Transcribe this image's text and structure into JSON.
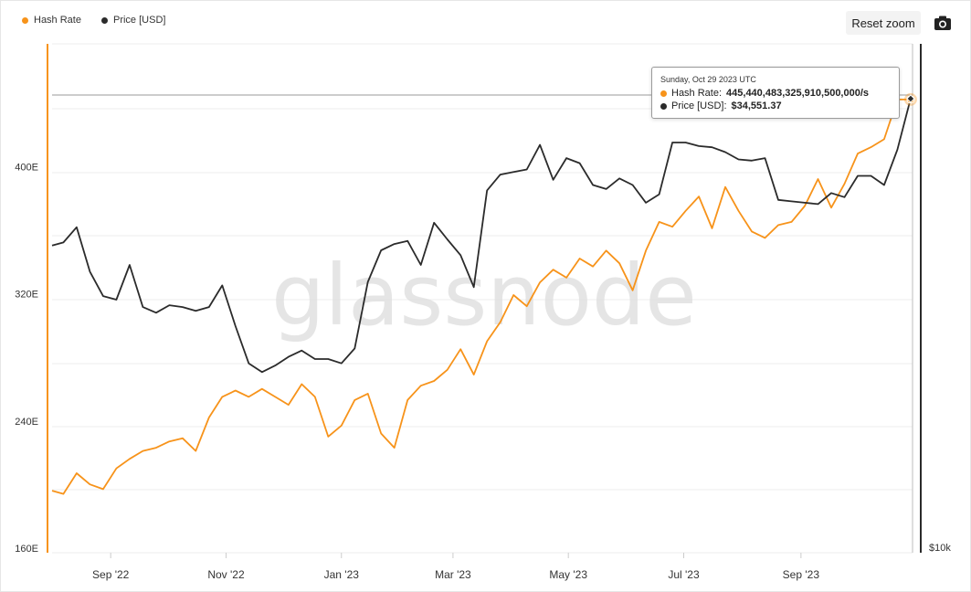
{
  "legend": {
    "hash_rate": "Hash Rate",
    "price": "Price [USD]"
  },
  "toolbar": {
    "reset_zoom": "Reset zoom",
    "camera_icon": "camera-icon"
  },
  "watermark": "glassnode",
  "colors": {
    "hash_rate": "#f7931a",
    "price": "#2b2b2b",
    "grid": "#eeeeee"
  },
  "tooltip": {
    "date": "Sunday, Oct 29 2023 UTC",
    "hash_label": "Hash Rate:",
    "hash_value": "445,440,483,325,910,500,000/s",
    "price_label": "Price [USD]:",
    "price_value": "$34,551.37"
  },
  "chart_data": {
    "type": "line",
    "x_tick_labels": [
      "Sep '22",
      "Nov '22",
      "Jan '23",
      "Mar '23",
      "May '23",
      "Jul '23",
      "Sep '23"
    ],
    "y_left_tick_labels": [
      "160E",
      "240E",
      "320E",
      "400E"
    ],
    "y_right_tick_labels": [
      "$10k"
    ],
    "y_left_ticks": [
      160,
      240,
      320,
      400
    ],
    "ylim_left": [
      160,
      480
    ],
    "x_range": [
      "2022-08-01",
      "2023-10-30"
    ],
    "grid": true,
    "legend_position": "top-left",
    "series": [
      {
        "name": "Hash Rate",
        "axis": "left",
        "unit": "E",
        "color": "#f7931a",
        "points": [
          [
            "2022-08-01",
            199
          ],
          [
            "2022-08-07",
            197
          ],
          [
            "2022-08-14",
            210
          ],
          [
            "2022-08-21",
            203
          ],
          [
            "2022-08-28",
            200
          ],
          [
            "2022-09-04",
            213
          ],
          [
            "2022-09-11",
            219
          ],
          [
            "2022-09-18",
            224
          ],
          [
            "2022-09-25",
            226
          ],
          [
            "2022-10-02",
            230
          ],
          [
            "2022-10-09",
            232
          ],
          [
            "2022-10-16",
            224
          ],
          [
            "2022-10-23",
            245
          ],
          [
            "2022-10-30",
            258
          ],
          [
            "2022-11-06",
            262
          ],
          [
            "2022-11-13",
            258
          ],
          [
            "2022-11-20",
            263
          ],
          [
            "2022-11-27",
            258
          ],
          [
            "2022-12-04",
            253
          ],
          [
            "2022-12-11",
            266
          ],
          [
            "2022-12-18",
            258
          ],
          [
            "2022-12-25",
            233
          ],
          [
            "2023-01-01",
            240
          ],
          [
            "2023-01-08",
            256
          ],
          [
            "2023-01-15",
            260
          ],
          [
            "2023-01-22",
            235
          ],
          [
            "2023-01-29",
            226
          ],
          [
            "2023-02-05",
            256
          ],
          [
            "2023-02-12",
            265
          ],
          [
            "2023-02-19",
            268
          ],
          [
            "2023-02-26",
            275
          ],
          [
            "2023-03-05",
            288
          ],
          [
            "2023-03-12",
            272
          ],
          [
            "2023-03-19",
            293
          ],
          [
            "2023-03-26",
            305
          ],
          [
            "2023-04-02",
            322
          ],
          [
            "2023-04-09",
            315
          ],
          [
            "2023-04-16",
            330
          ],
          [
            "2023-04-23",
            338
          ],
          [
            "2023-04-30",
            333
          ],
          [
            "2023-05-07",
            345
          ],
          [
            "2023-05-14",
            340
          ],
          [
            "2023-05-21",
            350
          ],
          [
            "2023-05-28",
            342
          ],
          [
            "2023-06-04",
            325
          ],
          [
            "2023-06-11",
            350
          ],
          [
            "2023-06-18",
            368
          ],
          [
            "2023-06-25",
            365
          ],
          [
            "2023-07-02",
            375
          ],
          [
            "2023-07-09",
            384
          ],
          [
            "2023-07-16",
            364
          ],
          [
            "2023-07-23",
            390
          ],
          [
            "2023-07-30",
            375
          ],
          [
            "2023-08-06",
            362
          ],
          [
            "2023-08-13",
            358
          ],
          [
            "2023-08-20",
            366
          ],
          [
            "2023-08-27",
            368
          ],
          [
            "2023-09-03",
            378
          ],
          [
            "2023-09-10",
            395
          ],
          [
            "2023-09-17",
            377
          ],
          [
            "2023-09-24",
            392
          ],
          [
            "2023-10-01",
            411
          ],
          [
            "2023-10-08",
            415
          ],
          [
            "2023-10-15",
            420
          ],
          [
            "2023-10-22",
            445
          ],
          [
            "2023-10-29",
            445
          ]
        ]
      },
      {
        "name": "Price [USD]",
        "axis": "right",
        "unit": "USD",
        "color": "#2b2b2b",
        "points": [
          [
            "2022-08-01",
            23000
          ],
          [
            "2022-08-07",
            23200
          ],
          [
            "2022-08-14",
            24200
          ],
          [
            "2022-08-21",
            21400
          ],
          [
            "2022-08-28",
            20000
          ],
          [
            "2022-09-04",
            19800
          ],
          [
            "2022-09-11",
            21800
          ],
          [
            "2022-09-18",
            19400
          ],
          [
            "2022-09-25",
            19100
          ],
          [
            "2022-10-02",
            19500
          ],
          [
            "2022-10-09",
            19400
          ],
          [
            "2022-10-16",
            19200
          ],
          [
            "2022-10-23",
            19400
          ],
          [
            "2022-10-30",
            20600
          ],
          [
            "2022-11-06",
            18400
          ],
          [
            "2022-11-13",
            16600
          ],
          [
            "2022-11-20",
            16200
          ],
          [
            "2022-11-27",
            16500
          ],
          [
            "2022-12-04",
            16900
          ],
          [
            "2022-12-11",
            17200
          ],
          [
            "2022-12-18",
            16800
          ],
          [
            "2022-12-25",
            16800
          ],
          [
            "2023-01-01",
            16600
          ],
          [
            "2023-01-08",
            17300
          ],
          [
            "2023-01-15",
            20800
          ],
          [
            "2023-01-22",
            22700
          ],
          [
            "2023-01-29",
            23100
          ],
          [
            "2023-02-05",
            23300
          ],
          [
            "2023-02-12",
            21800
          ],
          [
            "2023-02-19",
            24500
          ],
          [
            "2023-02-26",
            23400
          ],
          [
            "2023-03-05",
            22400
          ],
          [
            "2023-03-12",
            20500
          ],
          [
            "2023-03-19",
            26800
          ],
          [
            "2023-03-26",
            28000
          ],
          [
            "2023-04-02",
            28200
          ],
          [
            "2023-04-09",
            28400
          ],
          [
            "2023-04-16",
            30400
          ],
          [
            "2023-04-23",
            27600
          ],
          [
            "2023-04-30",
            29300
          ],
          [
            "2023-05-07",
            28900
          ],
          [
            "2023-05-14",
            27200
          ],
          [
            "2023-05-21",
            26900
          ],
          [
            "2023-05-28",
            27700
          ],
          [
            "2023-06-04",
            27200
          ],
          [
            "2023-06-11",
            25900
          ],
          [
            "2023-06-18",
            26500
          ],
          [
            "2023-06-25",
            30600
          ],
          [
            "2023-07-02",
            30600
          ],
          [
            "2023-07-09",
            30300
          ],
          [
            "2023-07-16",
            30200
          ],
          [
            "2023-07-23",
            29800
          ],
          [
            "2023-07-30",
            29200
          ],
          [
            "2023-08-06",
            29100
          ],
          [
            "2023-08-13",
            29300
          ],
          [
            "2023-08-20",
            26100
          ],
          [
            "2023-08-27",
            26000
          ],
          [
            "2023-09-03",
            25900
          ],
          [
            "2023-09-10",
            25800
          ],
          [
            "2023-09-17",
            26600
          ],
          [
            "2023-09-24",
            26300
          ],
          [
            "2023-10-01",
            27900
          ],
          [
            "2023-10-08",
            27900
          ],
          [
            "2023-10-15",
            27200
          ],
          [
            "2023-10-22",
            30000
          ],
          [
            "2023-10-29",
            34551.37
          ]
        ]
      }
    ]
  }
}
